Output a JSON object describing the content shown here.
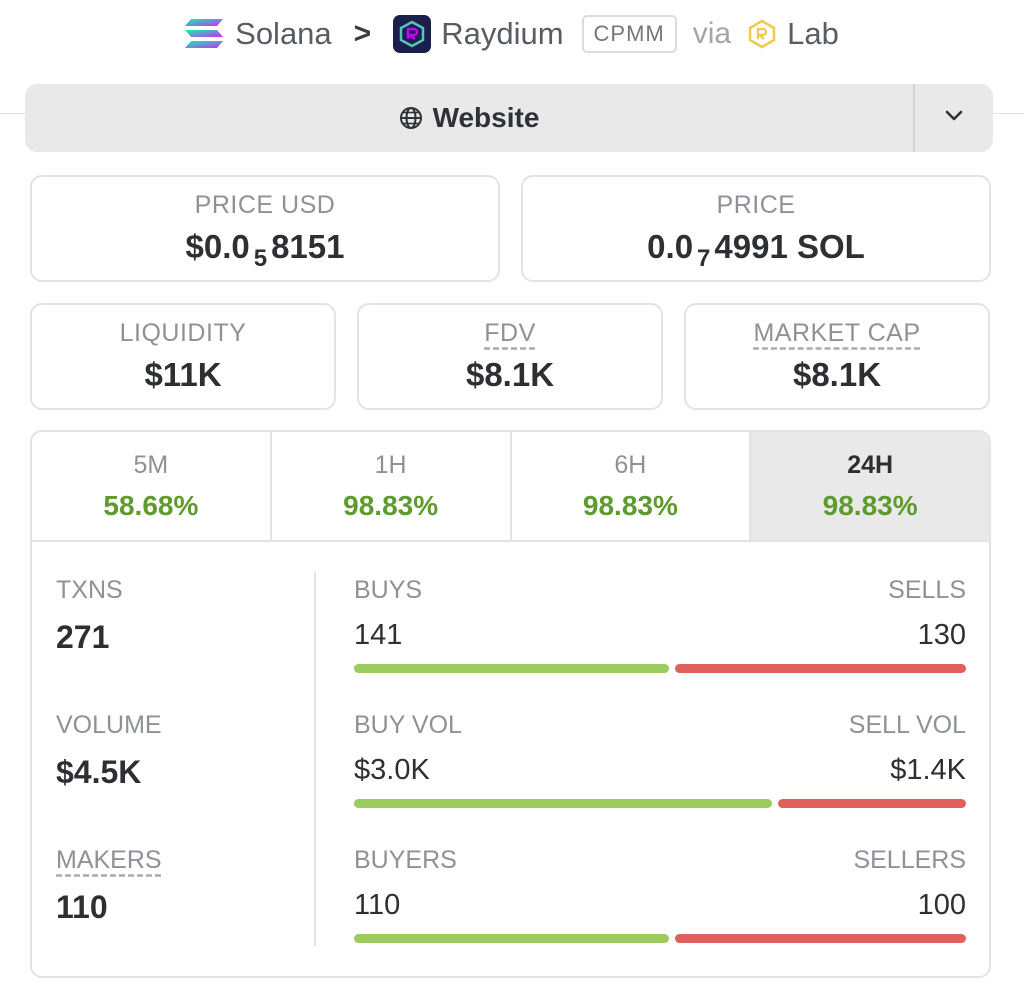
{
  "breadcrumb": {
    "chain": "Solana",
    "separator": ">",
    "dex": "Raydium",
    "pool_type": "CPMM",
    "via": "via",
    "source": "Lab"
  },
  "website_bar": {
    "label": "Website"
  },
  "price_usd": {
    "label": "PRICE USD",
    "prefix": "$0.0",
    "zeros": "5",
    "digits": "8151"
  },
  "price_native": {
    "label": "PRICE",
    "prefix": "0.0",
    "zeros": "7",
    "digits": "4991 SOL"
  },
  "liquidity": {
    "label": "LIQUIDITY",
    "value": "$11K"
  },
  "fdv": {
    "label": "FDV",
    "value": "$8.1K"
  },
  "market_cap": {
    "label": "MARKET CAP",
    "value": "$8.1K"
  },
  "periods": [
    {
      "label": "5M",
      "change": "58.68%"
    },
    {
      "label": "1H",
      "change": "98.83%"
    },
    {
      "label": "6H",
      "change": "98.83%"
    },
    {
      "label": "24H",
      "change": "98.83%",
      "active": true
    }
  ],
  "txns": {
    "label": "TXNS",
    "value": "271",
    "buys_label": "BUYS",
    "buys": "141",
    "sells_label": "SELLS",
    "sells": "130",
    "buy_fraction": 0.52
  },
  "volume": {
    "label": "VOLUME",
    "value": "$4.5K",
    "buy_label": "BUY VOL",
    "buy": "$3.0K",
    "sell_label": "SELL VOL",
    "sell": "$1.4K",
    "buy_fraction": 0.69
  },
  "makers": {
    "label": "MAKERS",
    "value": "110",
    "buyers_label": "BUYERS",
    "buyers": "110",
    "sellers_label": "SELLERS",
    "sellers": "100",
    "buy_fraction": 0.52
  },
  "colors": {
    "positive": "#5e9a2c",
    "buy_bar": "#9ccc5d",
    "sell_bar": "#e0605b"
  },
  "icons": {
    "chain": "solana-logo-icon",
    "separator": "chevron-right-icon",
    "dex": "raydium-logo-icon",
    "source": "lab-logo-icon",
    "website": "globe-icon",
    "toggle": "chevron-down-icon"
  }
}
